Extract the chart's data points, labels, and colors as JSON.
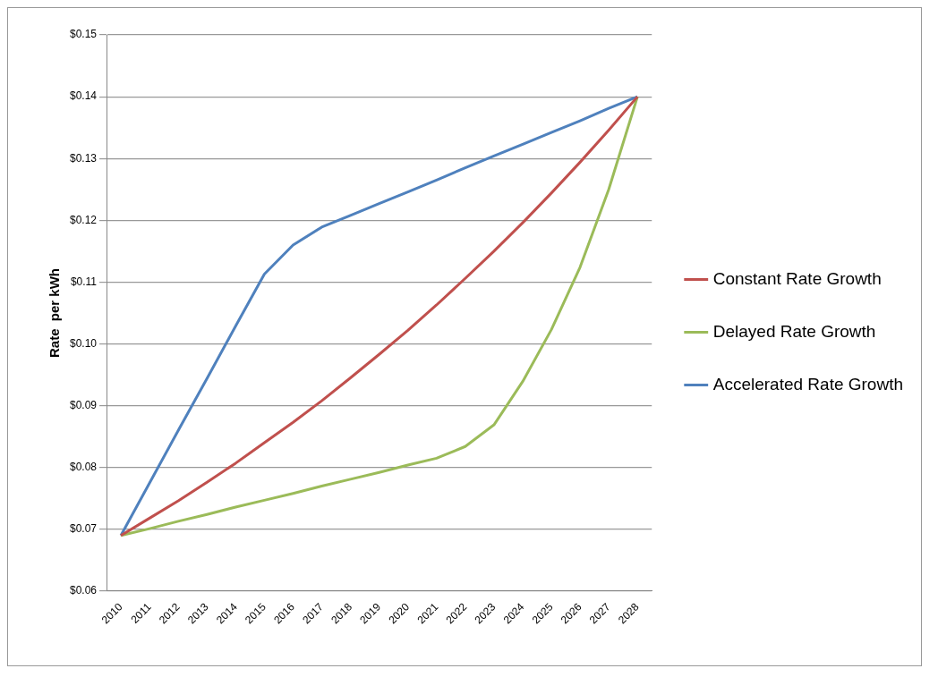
{
  "chart_data": {
    "type": "line",
    "ylabel": "Rate  per kWh",
    "categories": [
      "2010",
      "2011",
      "2012",
      "2013",
      "2014",
      "2015",
      "2016",
      "2017",
      "2018",
      "2019",
      "2020",
      "2021",
      "2022",
      "2023",
      "2024",
      "2025",
      "2026",
      "2027",
      "2028"
    ],
    "series": [
      {
        "name": "Constant Rate Growth",
        "color": "#c0504d",
        "values": [
          0.069,
          0.0718,
          0.0746,
          0.0776,
          0.0807,
          0.084,
          0.0873,
          0.0908,
          0.0945,
          0.0983,
          0.1022,
          0.1063,
          0.1106,
          0.115,
          0.1196,
          0.1244,
          0.1294,
          0.1346,
          0.14
        ]
      },
      {
        "name": "Delayed Rate Growth",
        "color": "#9bbb59",
        "values": [
          0.069,
          0.0701,
          0.0713,
          0.0724,
          0.0736,
          0.0747,
          0.0758,
          0.077,
          0.0781,
          0.0792,
          0.0804,
          0.0815,
          0.0834,
          0.0869,
          0.0939,
          0.1023,
          0.1124,
          0.125,
          0.14
        ]
      },
      {
        "name": "Accelerated Rate Growth",
        "color": "#4f81bd",
        "values": [
          0.069,
          0.0775,
          0.086,
          0.0944,
          0.1029,
          0.1113,
          0.116,
          0.1189,
          0.1208,
          0.1227,
          0.1246,
          0.1265,
          0.1285,
          0.1304,
          0.1323,
          0.1342,
          0.1361,
          0.1381,
          0.14
        ]
      }
    ],
    "ylim": [
      0.06,
      0.15
    ],
    "yticks": [
      {
        "value": 0.06,
        "label": "$0.06"
      },
      {
        "value": 0.07,
        "label": "$0.07"
      },
      {
        "value": 0.08,
        "label": "$0.08"
      },
      {
        "value": 0.09,
        "label": "$0.09"
      },
      {
        "value": 0.1,
        "label": "$0.10"
      },
      {
        "value": 0.11,
        "label": "$0.11"
      },
      {
        "value": 0.12,
        "label": "$0.12"
      },
      {
        "value": 0.13,
        "label": "$0.13"
      },
      {
        "value": 0.14,
        "label": "$0.14"
      },
      {
        "value": 0.15,
        "label": "$0.15"
      }
    ],
    "grid": "y",
    "legend": "right",
    "marker": "none",
    "line_style": "solid"
  }
}
